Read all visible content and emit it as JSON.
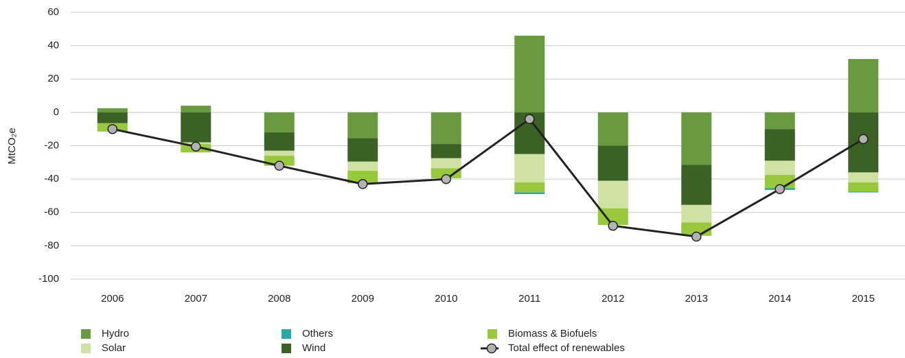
{
  "chart_data": {
    "type": "stacked-bar-line",
    "y_label": "MtCO₂e",
    "categories": [
      "2006",
      "2007",
      "2008",
      "2009",
      "2010",
      "2011",
      "2012",
      "2013",
      "2014",
      "2015"
    ],
    "series": [
      {
        "name": "Hydro",
        "color": "#6a9a3f",
        "values": [
          2.5,
          4,
          -12,
          -15.5,
          -19,
          46,
          -20,
          -31.5,
          -10,
          32
        ]
      },
      {
        "name": "Wind",
        "color": "#3b6125",
        "values": [
          -6.5,
          -18,
          -11,
          -14,
          -8.5,
          -25,
          -21,
          -24,
          -19,
          -36
        ]
      },
      {
        "name": "Solar",
        "color": "#cfe2a3",
        "values": [
          0,
          -1,
          -3,
          -5.5,
          -6,
          -17,
          -16.5,
          -10.5,
          -8.5,
          -6
        ]
      },
      {
        "name": "Biomass & Biofuels",
        "color": "#97c83d",
        "values": [
          -5,
          -5,
          -6,
          -7.5,
          -6,
          -6,
          -10,
          -8,
          -8,
          -5.5
        ]
      },
      {
        "name": "Others",
        "color": "#2aa8a3",
        "values": [
          0,
          0,
          0,
          0,
          0,
          -1,
          0,
          0,
          -1,
          -0.5
        ]
      }
    ],
    "line": {
      "name": "Total effect of renewables",
      "color": "#222222",
      "marker_color": "#b3b3b3",
      "values": [
        -10,
        -20.5,
        -32,
        -43,
        -40,
        -4,
        -68,
        -74.5,
        -46,
        -16
      ]
    },
    "ylim": [
      -100,
      60
    ],
    "yticks": [
      -100,
      -80,
      -60,
      -40,
      -20,
      0,
      20,
      40,
      60
    ],
    "grid": true
  }
}
